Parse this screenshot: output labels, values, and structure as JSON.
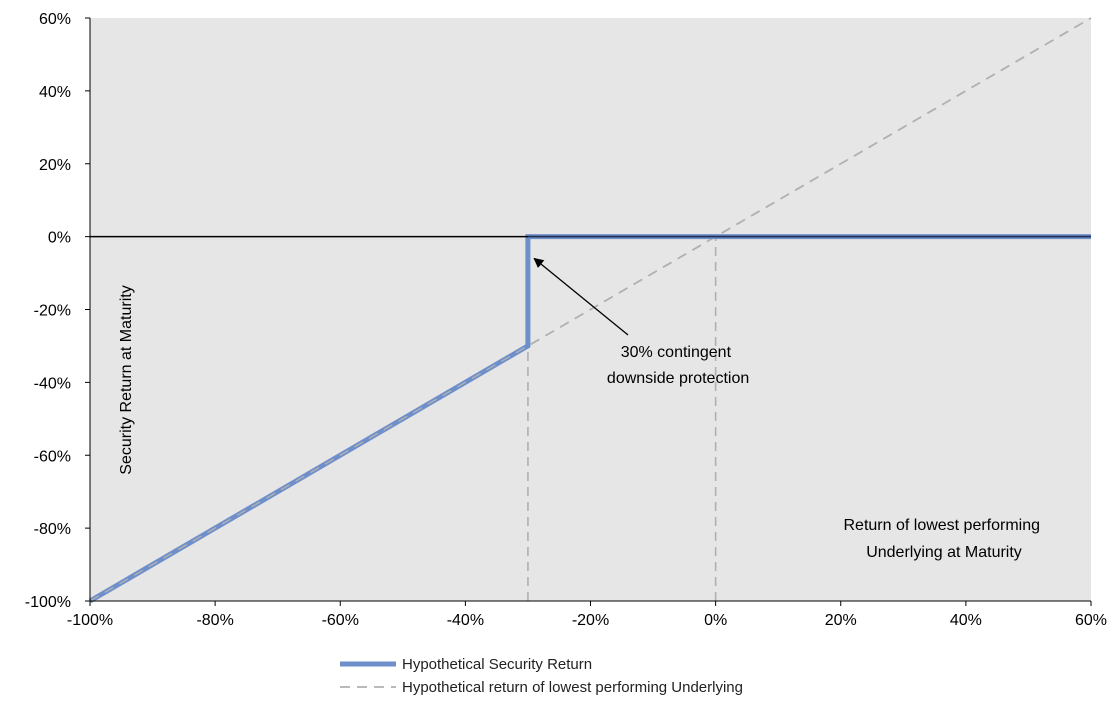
{
  "chart_data": {
    "type": "line",
    "x_axis": {
      "range": [
        -100,
        60
      ],
      "ticks": [
        -100,
        -80,
        -60,
        -40,
        -20,
        0,
        20,
        40,
        60
      ],
      "tick_labels": [
        "-100%",
        "-80%",
        "-60%",
        "-40%",
        "-20%",
        "0%",
        "20%",
        "40%",
        "60%"
      ],
      "label_lines": [
        "Return of lowest performing",
        "Underlying at Maturity"
      ]
    },
    "y_axis": {
      "range": [
        -100,
        60
      ],
      "ticks": [
        -100,
        -80,
        -60,
        -40,
        -20,
        0,
        20,
        40,
        60
      ],
      "tick_labels": [
        "-100%",
        "-80%",
        "-60%",
        "-40%",
        "-20%",
        "0%",
        "20%",
        "40%",
        "60%"
      ],
      "label": "Security Return at Maturity"
    },
    "series": [
      {
        "name": "Hypothetical Security Return",
        "style": "solid",
        "color": "#6f8fcb",
        "points": [
          [
            -100,
            -100
          ],
          [
            -30,
            -30
          ],
          [
            -30,
            0
          ],
          [
            60,
            0
          ]
        ]
      },
      {
        "name": "Hypothetical return of lowest performing Underlying",
        "style": "dashed",
        "color": "#b0b0b0",
        "points": [
          [
            -100,
            -100
          ],
          [
            60,
            60
          ]
        ]
      }
    ],
    "reference_lines": [
      {
        "axis": "x",
        "value": -30,
        "style": "dashed",
        "color": "#b0b0b0"
      },
      {
        "axis": "x",
        "value": 0,
        "style": "dashed",
        "color": "#b0b0b0"
      },
      {
        "axis": "y",
        "value": 0,
        "style": "solid",
        "color": "#000000"
      }
    ],
    "annotation": {
      "text_lines": [
        "30% contingent",
        "downside protection"
      ],
      "text_anchor": [
        -6,
        -33
      ],
      "arrow_from": [
        -14,
        -27
      ],
      "arrow_to": [
        -29,
        -6
      ]
    },
    "plot_background": "#e6e6e6",
    "grid": false,
    "legend_position": "bottom"
  }
}
